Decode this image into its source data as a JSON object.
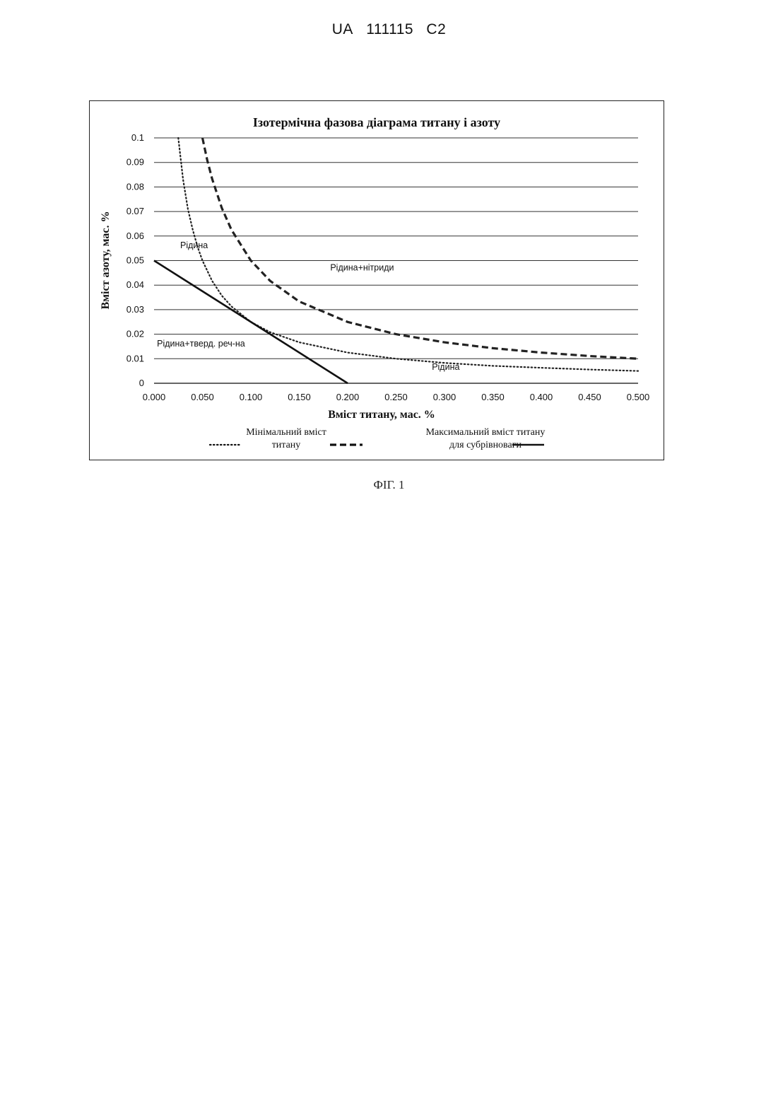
{
  "header": {
    "country": "UA",
    "number": "111115",
    "kind": "C2"
  },
  "figure_caption": "ФІГ. 1",
  "chart_data": {
    "type": "line",
    "title": "Ізотермічна фазова діаграма титану і азоту",
    "xlabel": "Вміст титану, мас. %",
    "ylabel": "Вміст азоту, мас. %",
    "xlim": [
      0,
      0.5
    ],
    "ylim": [
      0,
      0.1
    ],
    "x_ticks": [
      "0.000",
      "0.050",
      "0.100",
      "0.150",
      "0.200",
      "0.250",
      "0.300",
      "0.350",
      "0.400",
      "0.450",
      "0.500"
    ],
    "y_ticks": [
      "0",
      "0.01",
      "0.02",
      "0.03",
      "0.04",
      "0.05",
      "0.06",
      "0.07",
      "0.08",
      "0.09",
      "0.1"
    ],
    "grid": "horizontal",
    "series": [
      {
        "name": "Мінімальний вміст титану",
        "style": "dotted",
        "color": "#222222",
        "x": [
          0.025,
          0.03,
          0.035,
          0.04,
          0.045,
          0.05,
          0.06,
          0.07,
          0.08,
          0.1,
          0.12,
          0.15,
          0.2,
          0.25,
          0.3,
          0.35,
          0.4,
          0.45,
          0.5
        ],
        "y": [
          0.1,
          0.083,
          0.071,
          0.0625,
          0.0555,
          0.05,
          0.0417,
          0.0357,
          0.0313,
          0.025,
          0.0208,
          0.0167,
          0.0125,
          0.01,
          0.0083,
          0.0071,
          0.0063,
          0.0056,
          0.005
        ]
      },
      {
        "name": "Максимальний вміст титану для субрівноваги",
        "style": "dashed",
        "color": "#222222",
        "x": [
          0.05,
          0.055,
          0.06,
          0.07,
          0.08,
          0.1,
          0.12,
          0.15,
          0.2,
          0.25,
          0.3,
          0.35,
          0.4,
          0.45,
          0.5
        ],
        "y": [
          0.1,
          0.0909,
          0.0833,
          0.0714,
          0.0625,
          0.05,
          0.0417,
          0.0333,
          0.025,
          0.02,
          0.0167,
          0.0143,
          0.0125,
          0.0111,
          0.01
        ]
      },
      {
        "name": "",
        "style": "solid",
        "color": "#111111",
        "x": [
          0.0,
          0.2
        ],
        "y": [
          0.05,
          0.0
        ]
      }
    ],
    "region_labels": [
      {
        "text": "Рідина",
        "x": 0.027,
        "y": 0.055
      },
      {
        "text": "Рідина+нітриди",
        "x": 0.182,
        "y": 0.046
      },
      {
        "text": "Рідина+тверд. реч-на",
        "x": 0.003,
        "y": 0.015
      },
      {
        "text": "Рідина",
        "x": 0.287,
        "y": 0.0055
      }
    ],
    "legend": {
      "position": "bottom",
      "items": [
        {
          "label_line1": "Мінімальний вміст",
          "label_line2": "титану",
          "style": "dotted"
        },
        {
          "label_line1": "Максимальний вміст титану",
          "label_line2": "для субрівноваги",
          "style": "dashed"
        },
        {
          "label_line1": "",
          "label_line2": "",
          "style": "solid"
        }
      ]
    }
  }
}
